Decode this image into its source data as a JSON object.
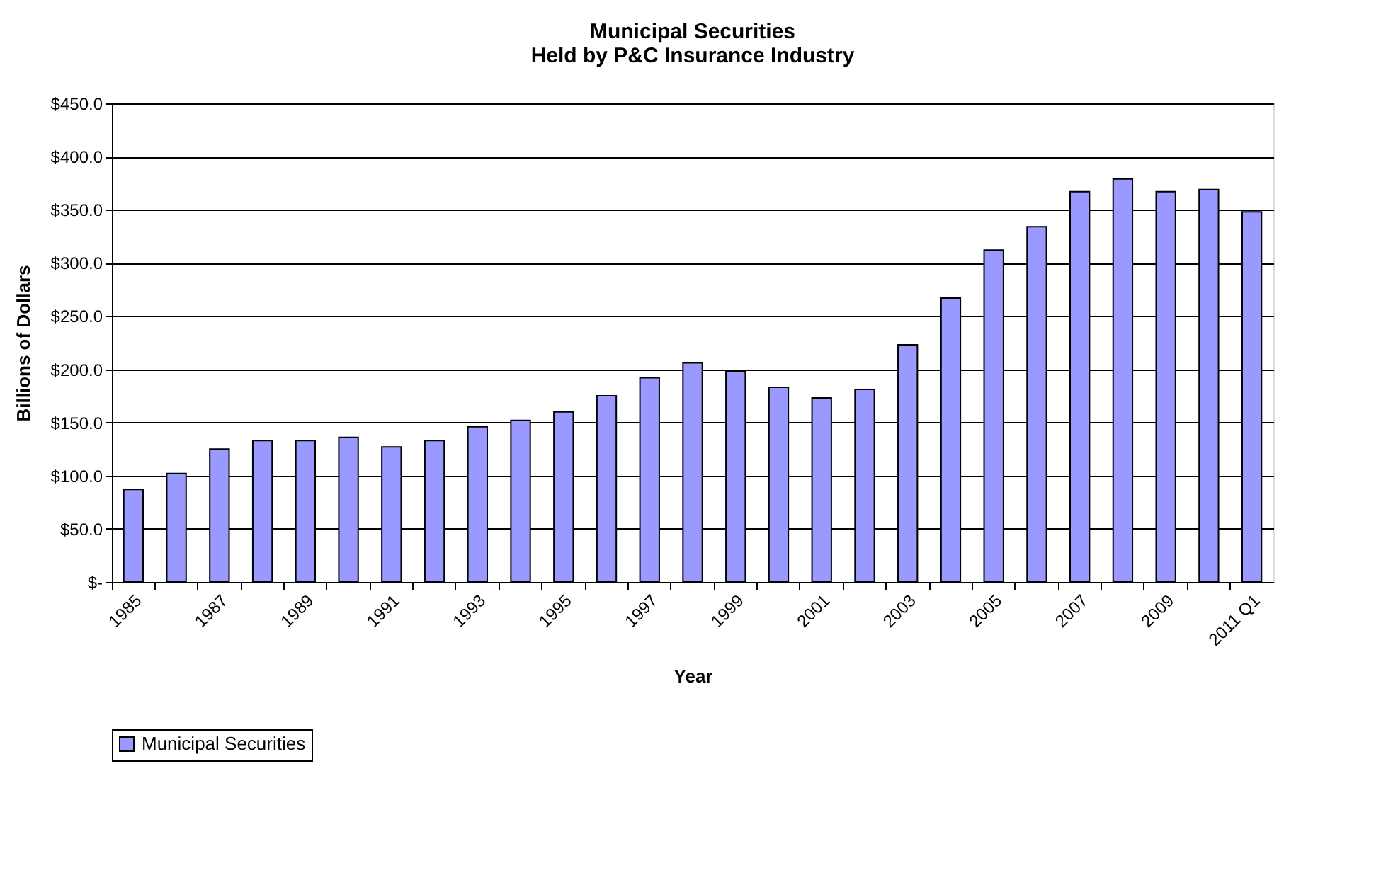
{
  "chart_data": {
    "type": "bar",
    "title": "Municipal Securities\nHeld by P&C Insurance Industry",
    "xlabel": "Year",
    "ylabel": "Billions of Dollars",
    "categories": [
      "1985",
      null,
      "1987",
      null,
      "1989",
      null,
      "1991",
      null,
      "1993",
      null,
      "1995",
      null,
      "1997",
      null,
      "1999",
      null,
      "2001",
      null,
      "2003",
      null,
      "2005",
      null,
      "2007",
      null,
      "2009",
      null,
      "2011 Q1"
    ],
    "series": [
      {
        "name": "Municipal Securities",
        "color": "#9999ff",
        "values": [
          87,
          102,
          125,
          133,
          133,
          136,
          127,
          133,
          146,
          152,
          160,
          175,
          192,
          206,
          198,
          183,
          173,
          181,
          223,
          267,
          312,
          334,
          367,
          379,
          367,
          369,
          348
        ]
      }
    ],
    "ylim": [
      0,
      450
    ],
    "yticks": [
      {
        "value": 0,
        "label": "$-"
      },
      {
        "value": 50,
        "label": "$50.0"
      },
      {
        "value": 100,
        "label": "$100.0"
      },
      {
        "value": 150,
        "label": "$150.0"
      },
      {
        "value": 200,
        "label": "$200.0"
      },
      {
        "value": 250,
        "label": "$250.0"
      },
      {
        "value": 300,
        "label": "$300.0"
      },
      {
        "value": 350,
        "label": "$350.0"
      },
      {
        "value": 400,
        "label": "$400.0"
      },
      {
        "value": 450,
        "label": "$450.0"
      }
    ],
    "grid": "y",
    "legend": "bottom"
  }
}
